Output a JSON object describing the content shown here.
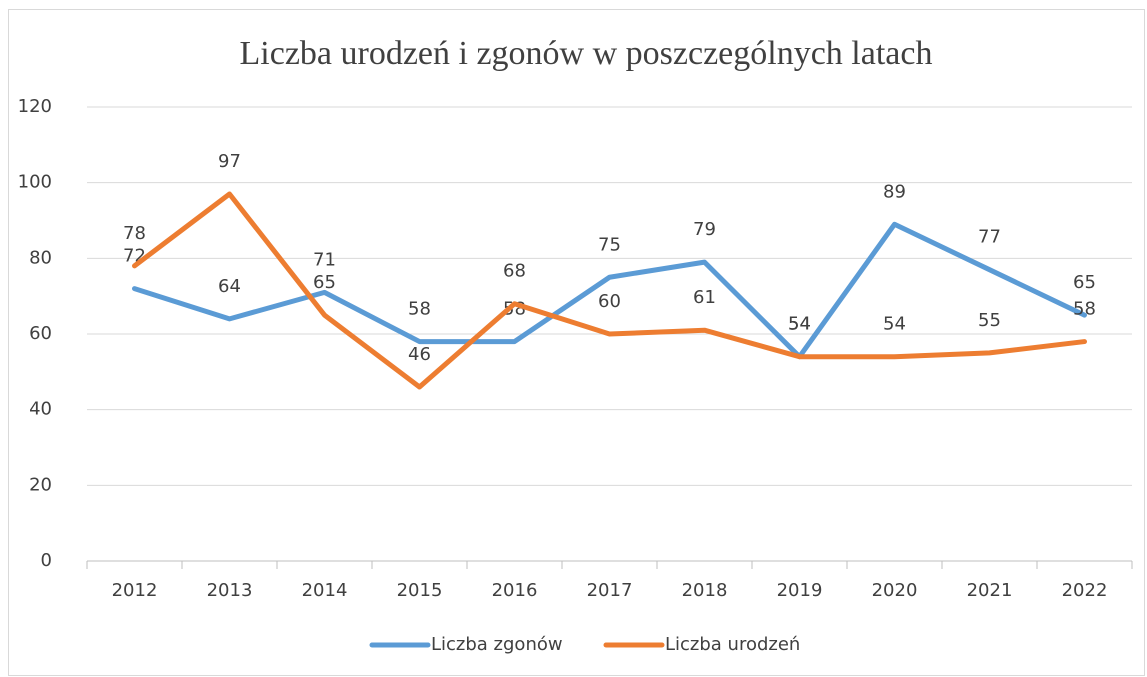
{
  "chart_data": {
    "type": "line",
    "title": "Liczba urodzeń i zgonów w poszczególnych latach",
    "categories": [
      "2012",
      "2013",
      "2014",
      "2015",
      "2016",
      "2017",
      "2018",
      "2019",
      "2020",
      "2021",
      "2022"
    ],
    "series": [
      {
        "name": "Liczba zgonów",
        "color": "#5b9bd5",
        "values": [
          72,
          64,
          71,
          58,
          58,
          75,
          79,
          54,
          89,
          77,
          65
        ]
      },
      {
        "name": "Liczba urodzeń",
        "color": "#ed7d31",
        "values": [
          78,
          97,
          65,
          46,
          68,
          60,
          61,
          54,
          54,
          55,
          58
        ]
      }
    ],
    "ylim": [
      0,
      120
    ],
    "yticks": [
      0,
      20,
      40,
      60,
      80,
      100,
      120
    ],
    "grid": true,
    "legend": "bottom"
  }
}
